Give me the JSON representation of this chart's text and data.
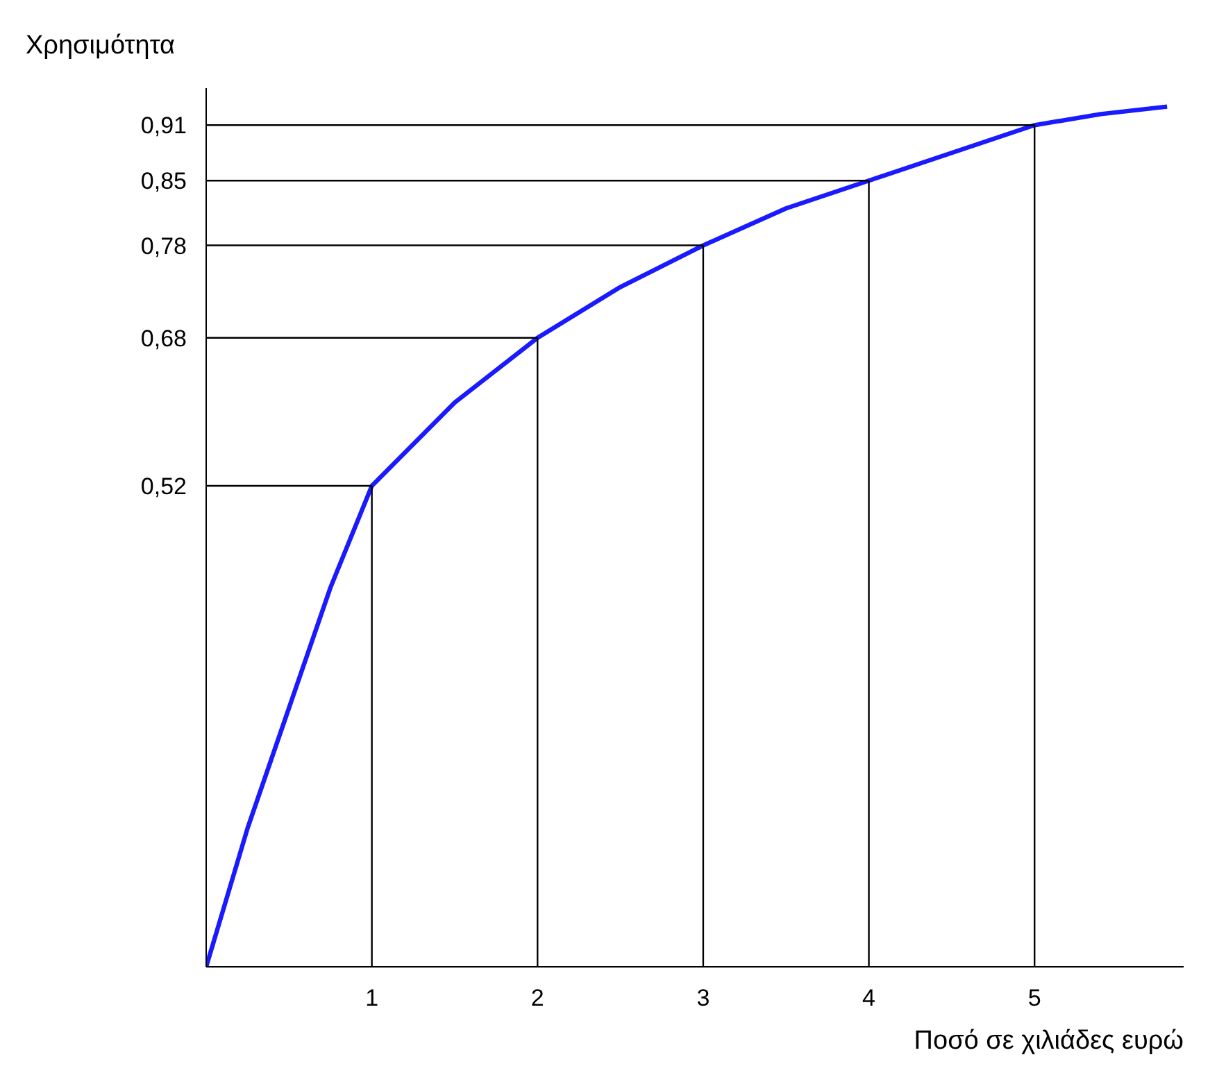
{
  "chart_data": {
    "type": "line",
    "xlabel": "Ποσό σε χιλιάδες ευρώ",
    "ylabel": "Χρησιμότητα",
    "x": [
      0,
      0.25,
      0.5,
      0.75,
      1,
      1.5,
      2,
      2.5,
      3,
      3.5,
      4,
      4.5,
      5,
      5.4,
      5.8
    ],
    "series": [
      {
        "color": "#1a1aff",
        "values": [
          0,
          0.15,
          0.28,
          0.41,
          0.52,
          0.61,
          0.68,
          0.735,
          0.78,
          0.82,
          0.85,
          0.88,
          0.91,
          0.922,
          0.93
        ]
      }
    ],
    "xlim": [
      0,
      5.9
    ],
    "ylim": [
      0,
      0.95
    ],
    "xticks": [
      1,
      2,
      3,
      4,
      5
    ],
    "yticks": [
      {
        "value": 0.52,
        "label": "0,52"
      },
      {
        "value": 0.68,
        "label": "0,68"
      },
      {
        "value": 0.78,
        "label": "0,78"
      },
      {
        "value": 0.85,
        "label": "0,85"
      },
      {
        "value": 0.91,
        "label": "0,91"
      }
    ],
    "ref_lines": [
      {
        "axis": "x",
        "value": 1,
        "label": null,
        "color": "#000000"
      },
      {
        "axis": "x",
        "value": 2,
        "label": null,
        "color": "#000000"
      },
      {
        "axis": "x",
        "value": 3,
        "label": null,
        "color": "#000000"
      },
      {
        "axis": "x",
        "value": 4,
        "label": null,
        "color": "#000000"
      },
      {
        "axis": "x",
        "value": 5,
        "label": null,
        "color": "#000000"
      },
      {
        "axis": "y",
        "value": 0.52,
        "label": null,
        "color": "#000000"
      },
      {
        "axis": "y",
        "value": 0.68,
        "label": null,
        "color": "#000000"
      },
      {
        "axis": "y",
        "value": 0.78,
        "label": null,
        "color": "#000000"
      },
      {
        "axis": "y",
        "value": 0.85,
        "label": null,
        "color": "#000000"
      },
      {
        "axis": "y",
        "value": 0.91,
        "label": null,
        "color": "#000000"
      }
    ],
    "grid": false,
    "marker": "none",
    "line_style": "solid"
  }
}
